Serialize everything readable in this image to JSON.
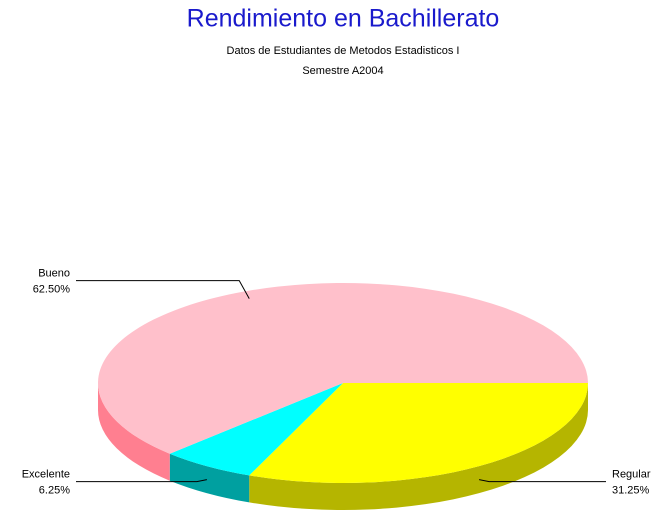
{
  "chart_data": {
    "type": "pie3d",
    "title": "Rendimiento en Bachillerato",
    "subtitle": [
      "Datos de Estudiantes de Metodos Estadisticos I",
      "Semestre A2004"
    ],
    "categories": [
      "Regular",
      "Excelente",
      "Bueno"
    ],
    "values": [
      31.25,
      6.25,
      62.5
    ],
    "value_labels": [
      "31.25%",
      "6.25%",
      "62.50%"
    ],
    "colors": [
      "#ffff00",
      "#00ffff",
      "#ffc0cb"
    ],
    "side_colors": [
      "#b5b500",
      "#00a0a0",
      "#ff7f90"
    ]
  }
}
